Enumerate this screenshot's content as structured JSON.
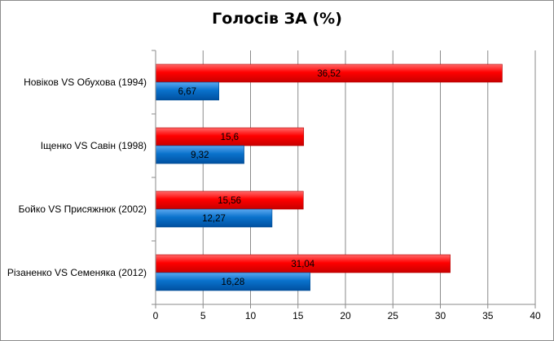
{
  "chart_data": {
    "type": "bar",
    "orientation": "horizontal",
    "title": "Голосів ЗА (%)",
    "xlabel": "",
    "ylabel": "",
    "categories": [
      "Новіков VS Обухова (1994)",
      "Іщенко VS Савін (1998)",
      "Бойко VS Присяжнюк (2002)",
      "Різаненко VS Семеняка (2012)"
    ],
    "series": [
      {
        "color": "#ff0000",
        "values": [
          36.52,
          15.6,
          15.56,
          31.04
        ],
        "labels": [
          "36,52",
          "15,6",
          "15,56",
          "31,04"
        ]
      },
      {
        "color": "#0070c0",
        "values": [
          6.67,
          9.32,
          12.27,
          16.28
        ],
        "labels": [
          "6,67",
          "9,32",
          "12,27",
          "16,28"
        ]
      }
    ],
    "xlim": [
      0,
      40
    ],
    "xticks": [
      0,
      5,
      10,
      15,
      20,
      25,
      30,
      35,
      40
    ],
    "grid": true,
    "legend": "none"
  }
}
